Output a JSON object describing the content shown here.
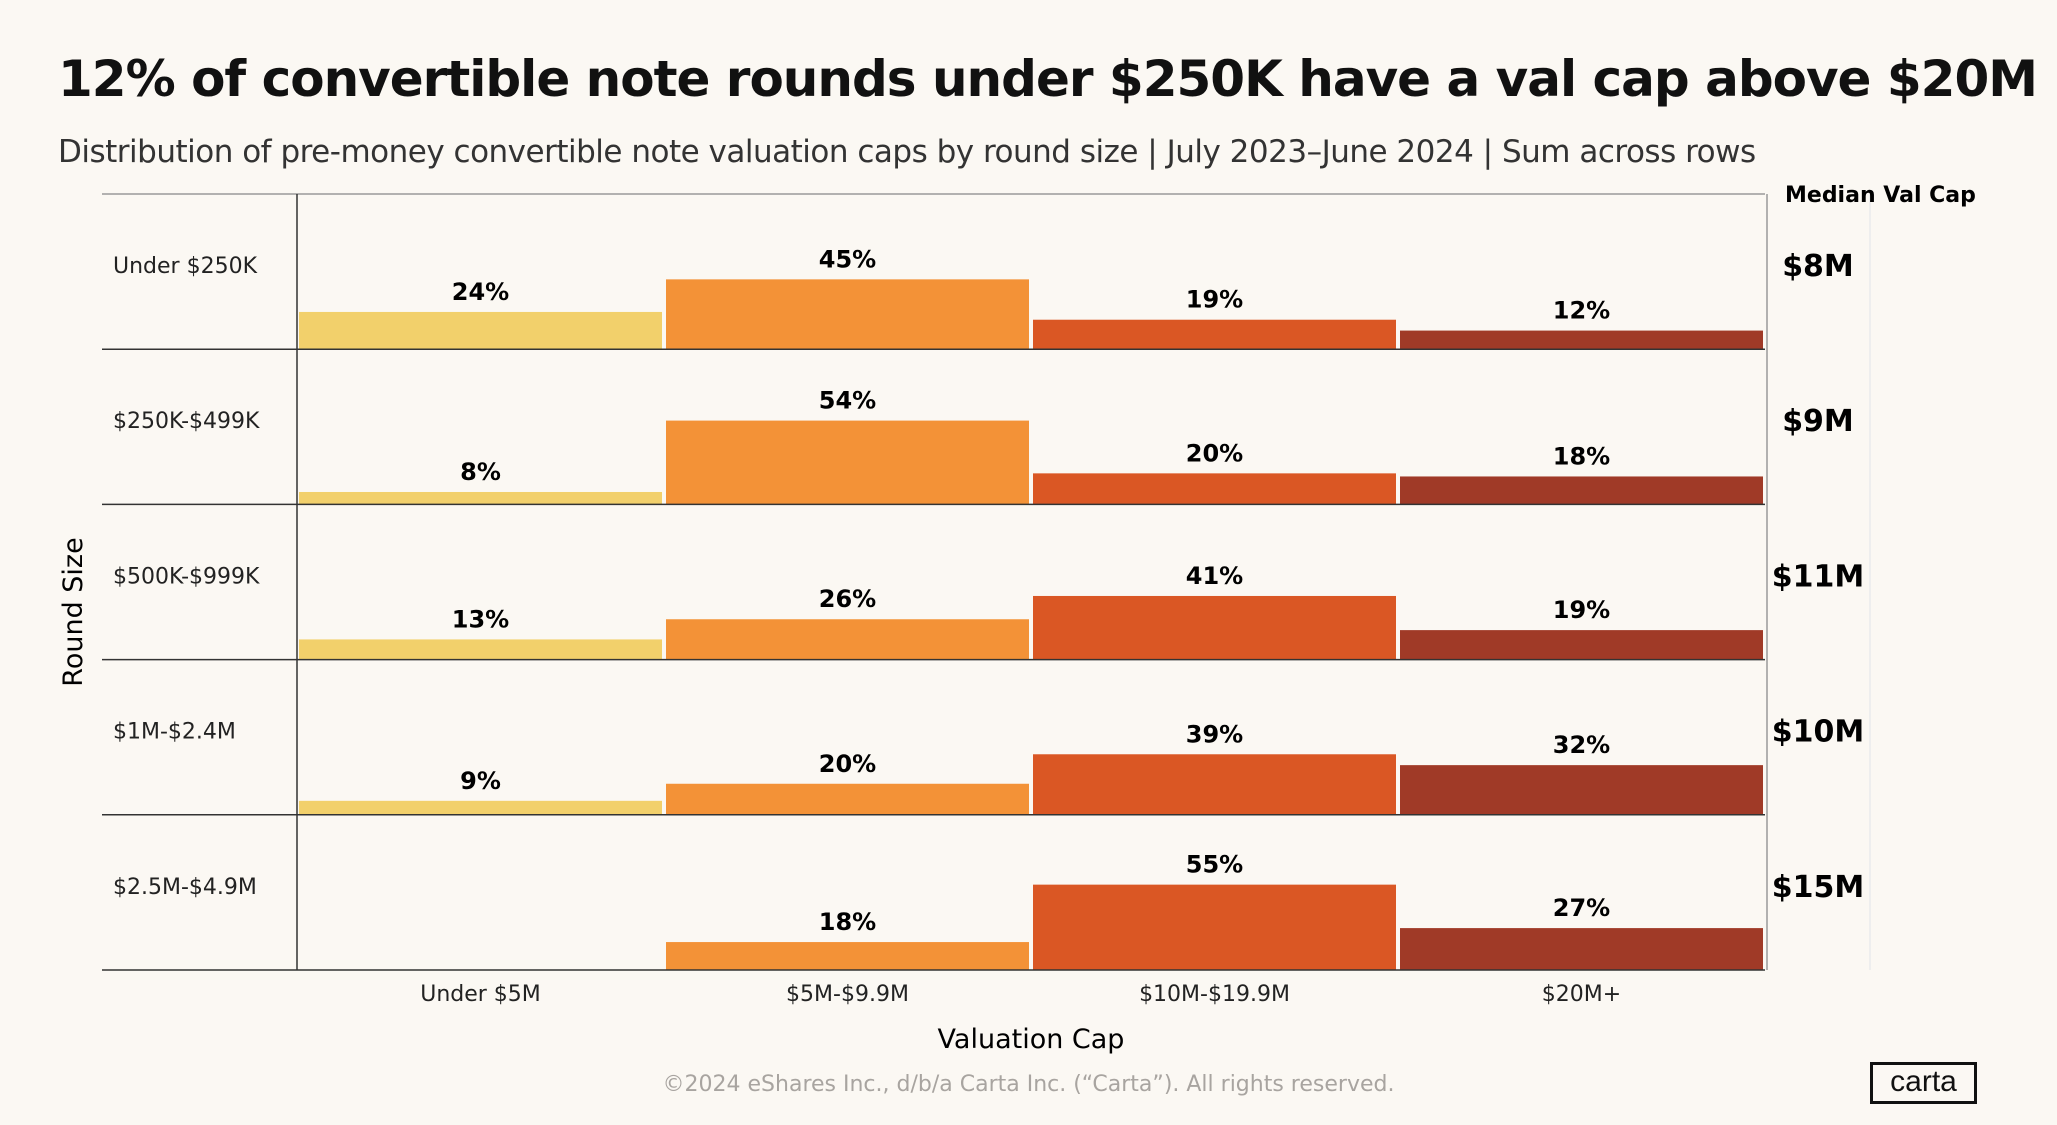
{
  "title": "12% of convertible note rounds under $250K have a val cap above $20M",
  "subtitle": "Distribution of pre-money convertible note valuation caps by round size | July 2023–June 2024 | Sum across rows",
  "footer": "©2024 eShares Inc., d/b/a Carta Inc. (“Carta”). All rights reserved.",
  "logo": "carta",
  "chart_data": {
    "type": "bar",
    "layout": "small-multiples-rows",
    "xlabel": "Valuation Cap",
    "ylabel": "Round Size",
    "categories": [
      "Under $5M",
      "$5M-$9.9M",
      "$10M-$19.9M",
      "$20M+"
    ],
    "colors": [
      "#f2d06b",
      "#f39237",
      "#da5724",
      "#a03a27"
    ],
    "median_header": "Median Val Cap",
    "rows": [
      {
        "name": "Under $250K",
        "values": [
          24,
          45,
          19,
          12
        ],
        "labels": [
          "24%",
          "45%",
          "19%",
          "12%"
        ],
        "median": "$8M"
      },
      {
        "name": "$250K-$499K",
        "values": [
          8,
          54,
          20,
          18
        ],
        "labels": [
          "8%",
          "54%",
          "20%",
          "18%"
        ],
        "median": "$9M"
      },
      {
        "name": "$500K-$999K",
        "values": [
          13,
          26,
          41,
          19
        ],
        "labels": [
          "13%",
          "26%",
          "41%",
          "19%"
        ],
        "median": "$11M"
      },
      {
        "name": "$1M-$2.4M",
        "values": [
          9,
          20,
          39,
          32
        ],
        "labels": [
          "9%",
          "20%",
          "39%",
          "32%"
        ],
        "median": "$10M"
      },
      {
        "name": "$2.5M-$4.9M",
        "values": [
          0,
          18,
          55,
          27
        ],
        "labels": [
          "",
          "18%",
          "55%",
          "27%"
        ],
        "median": "$15M"
      }
    ],
    "ylim": [
      0,
      100
    ]
  }
}
